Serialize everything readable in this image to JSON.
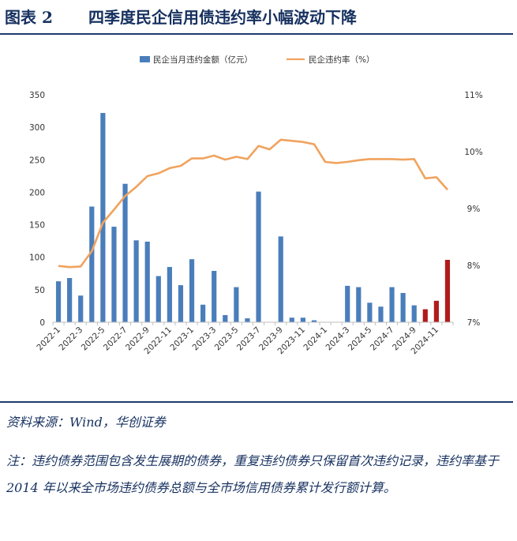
{
  "figure": {
    "label": "图表 2",
    "title": "四季度民企信用债违约率小幅波动下降"
  },
  "source": "资料来源：Wind，华创证券",
  "note": "注：违约债券范围包含发生展期的债券，重复违约债券只保留首次违约记录，违约率基于2014 年以来全市场违约债券总额与全市场信用债券累计发行额计算。",
  "colors": {
    "bar": "#4a7ebb",
    "bar_highlight": "#b01c1c",
    "line": "#f0a35e",
    "axis": "#bfbfbf",
    "text": "#333333"
  },
  "chart_data": {
    "type": "bar+line",
    "legend": {
      "bar_label": "民企当月违约金额（亿元）",
      "line_label": "民企违约率（%）",
      "placement": "top-center"
    },
    "x": [
      "2022-1",
      "2022-2",
      "2022-3",
      "2022-4",
      "2022-5",
      "2022-6",
      "2022-7",
      "2022-8",
      "2022-9",
      "2022-10",
      "2022-11",
      "2022-12",
      "2023-1",
      "2023-2",
      "2023-3",
      "2023-4",
      "2023-5",
      "2023-6",
      "2023-7",
      "2023-8",
      "2023-9",
      "2023-10",
      "2023-11",
      "2023-12",
      "2024-1",
      "2024-2",
      "2024-3",
      "2024-4",
      "2024-5",
      "2024-6",
      "2024-7",
      "2024-8",
      "2024-9",
      "2024-10",
      "2024-11",
      "2024-12"
    ],
    "x_tick_labels": [
      "2022-1",
      "2022-3",
      "2022-5",
      "2022-7",
      "2022-9",
      "2022-11",
      "2023-1",
      "2023-3",
      "2023-5",
      "2023-7",
      "2023-9",
      "2023-11",
      "2024-1",
      "2024-3",
      "2024-5",
      "2024-7",
      "2024-9",
      "2024-11"
    ],
    "bar_values": [
      63,
      68,
      41,
      178,
      322,
      147,
      213,
      126,
      124,
      71,
      85,
      57,
      97,
      27,
      79,
      11,
      54,
      6,
      201,
      0,
      132,
      7,
      7,
      3,
      0,
      0,
      56,
      54,
      30,
      24,
      54,
      45,
      26,
      20,
      33,
      96
    ],
    "highlight_from_index": 33,
    "line_values": [
      7.99,
      7.97,
      7.98,
      8.25,
      8.75,
      8.98,
      9.22,
      9.38,
      9.57,
      9.62,
      9.71,
      9.75,
      9.88,
      9.88,
      9.93,
      9.86,
      9.91,
      9.87,
      10.1,
      10.04,
      10.21,
      10.19,
      10.17,
      10.13,
      9.82,
      9.8,
      9.82,
      9.85,
      9.87,
      9.87,
      9.87,
      9.86,
      9.87,
      9.53,
      9.55,
      9.33
    ],
    "y_left": {
      "min": 0,
      "max": 350,
      "ticks": [
        0,
        50,
        100,
        150,
        200,
        250,
        300,
        350
      ]
    },
    "y_right": {
      "min": 7,
      "max": 11,
      "ticks": [
        "7%",
        "8%",
        "9%",
        "10%",
        "11%"
      ],
      "tick_values": [
        7,
        8,
        9,
        10,
        11
      ]
    },
    "grid": false
  }
}
